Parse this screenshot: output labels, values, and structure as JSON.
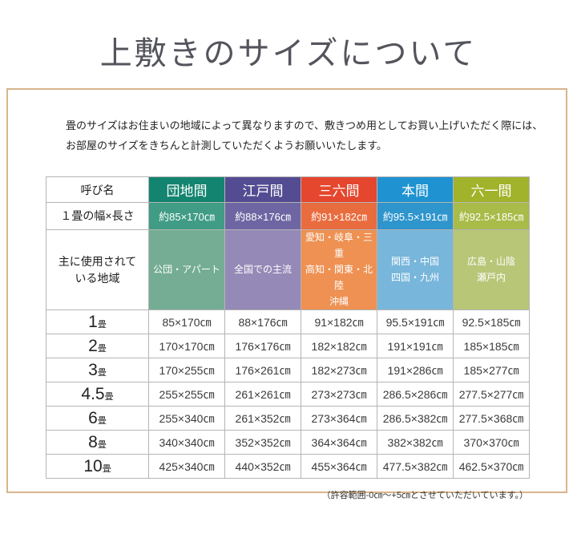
{
  "page": {
    "title": "上敷きのサイズについて"
  },
  "intro": {
    "line1": "畳のサイズはお住まいの地域によって異なりますので、敷きつめ用としてお買い上げいただく際には、",
    "line2": "お部屋のサイズをきちんと計測していただくようお願いいたします。"
  },
  "table": {
    "corner_header": "呼び名",
    "size_row_label": "１畳の幅×長さ",
    "region_row_label": [
      "主に使用されて",
      "いる地域"
    ],
    "columns": [
      {
        "name": "団地間",
        "size": "約85×170㎝",
        "regions": [
          "公団・アパート"
        ],
        "colors": {
          "dark": "#13846F",
          "mid": "#409C85",
          "light": "#74AD94"
        }
      },
      {
        "name": "江戸間",
        "size": "約88×176㎝",
        "regions": [
          "全国での主流"
        ],
        "colors": {
          "dark": "#544C92",
          "mid": "#6E66A3",
          "light": "#9489B7"
        }
      },
      {
        "name": "三六間",
        "size": "約91×182㎝",
        "regions": [
          "愛知・岐阜・三重",
          "高知・関東・北陸",
          "沖縄"
        ],
        "colors": {
          "dark": "#E5462E",
          "mid": "#E96C3E",
          "light": "#EE9153"
        }
      },
      {
        "name": "本間",
        "size": "約95.5×191㎝",
        "regions": [
          "関西・中国",
          "四国・九州"
        ],
        "colors": {
          "dark": "#1F93D1",
          "mid": "#2E95CD",
          "light": "#78B6DB"
        }
      },
      {
        "name": "六一間",
        "size": "約92.5×185㎝",
        "regions": [
          "広島・山陰",
          "瀬戸内"
        ],
        "colors": {
          "dark": "#A1B32A",
          "mid": "#A9BB48",
          "light": "#B8C677"
        }
      }
    ],
    "rows": [
      {
        "count": "1",
        "unit": "畳",
        "values": [
          "85×170㎝",
          "88×176㎝",
          "91×182㎝",
          "95.5×191㎝",
          "92.5×185㎝"
        ]
      },
      {
        "count": "2",
        "unit": "畳",
        "values": [
          "170×170㎝",
          "176×176㎝",
          "182×182㎝",
          "191×191㎝",
          "185×185㎝"
        ]
      },
      {
        "count": "3",
        "unit": "畳",
        "values": [
          "170×255㎝",
          "176×261㎝",
          "182×273㎝",
          "191×286㎝",
          "185×277㎝"
        ]
      },
      {
        "count": "4.5",
        "unit": "畳",
        "values": [
          "255×255㎝",
          "261×261㎝",
          "273×273㎝",
          "286.5×286㎝",
          "277.5×277㎝"
        ]
      },
      {
        "count": "6",
        "unit": "畳",
        "values": [
          "255×340㎝",
          "261×352㎝",
          "273×364㎝",
          "286.5×382㎝",
          "277.5×368㎝"
        ]
      },
      {
        "count": "8",
        "unit": "畳",
        "values": [
          "340×340㎝",
          "352×352㎝",
          "364×364㎝",
          "382×382㎝",
          "370×370㎝"
        ]
      },
      {
        "count": "10",
        "unit": "畳",
        "values": [
          "425×340㎝",
          "440×352㎝",
          "455×364㎝",
          "477.5×382㎝",
          "462.5×370㎝"
        ]
      }
    ]
  },
  "footer": {
    "note": "（許容範囲-0㎝〜+5㎝とさせていただいています。）"
  },
  "frame_border_color": "#d9b48c"
}
